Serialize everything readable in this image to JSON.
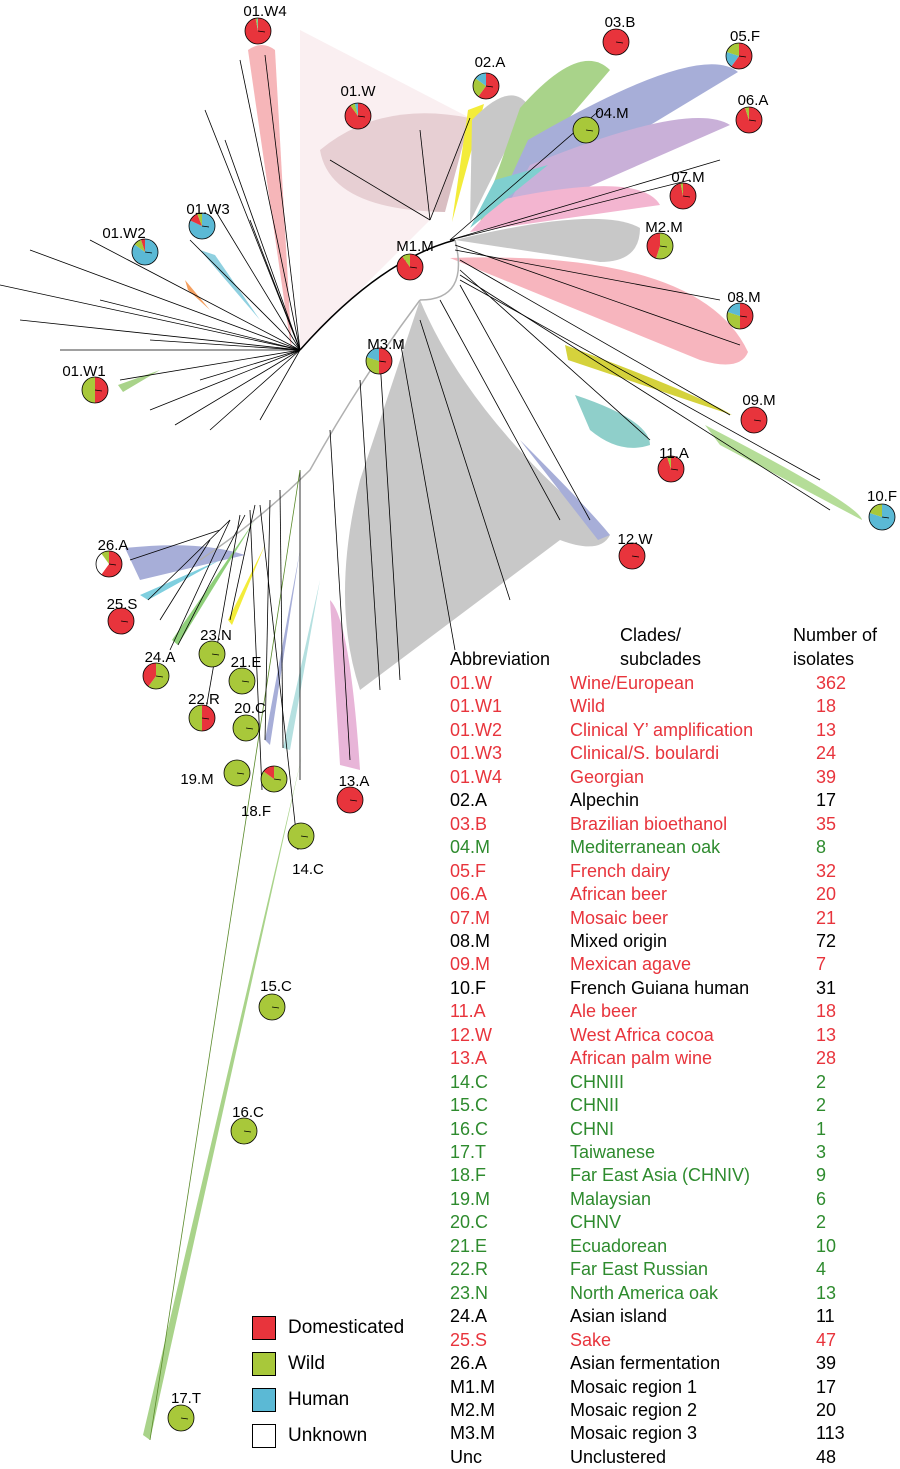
{
  "colors": {
    "domesticated": "#e8343c",
    "wild": "#a8c83a",
    "human": "#5bb9d5",
    "unknown": "#ffffff",
    "red_text": "#e8343c",
    "green_text": "#2e8b2e",
    "black_text": "#000000",
    "branch_gray": "#c8c8c8"
  },
  "clade_labels": [
    "01.W4",
    "01.W",
    "01.W2",
    "01.W3",
    "01.W1",
    "02.A",
    "03.B",
    "04.M",
    "05.F",
    "06.A",
    "07.M",
    "M2.M",
    "M1.M",
    "08.M",
    "M3.M",
    "09.M",
    "11.A",
    "10.F",
    "12.W",
    "26.A",
    "25.S",
    "24.A",
    "23.N",
    "21.E",
    "22.R",
    "20.C",
    "19.M",
    "18.F",
    "13.A",
    "14.C",
    "15.C",
    "16.C",
    "17.T"
  ],
  "table": {
    "headers": {
      "abbreviation": "Abbreviation",
      "clades_line1": "Clades/",
      "clades_line2": "subclades",
      "number_line1": "Number of",
      "number_line2": "isolates"
    },
    "rows": [
      {
        "abbr": "01.W",
        "name": "Wine/European",
        "n": "362",
        "group": "domesticated"
      },
      {
        "abbr": "01.W1",
        "name": "Wild",
        "n": "18",
        "group": "domesticated"
      },
      {
        "abbr": "01.W2",
        "name": "Clinical Y’ amplification",
        "n": "13",
        "group": "domesticated"
      },
      {
        "abbr": "01.W3",
        "name": "Clinical/S. boulardi",
        "n": "24",
        "group": "domesticated"
      },
      {
        "abbr": "01.W4",
        "name": "Georgian",
        "n": "39",
        "group": "domesticated"
      },
      {
        "abbr": "02.A",
        "name": "Alpechin",
        "n": "17",
        "group": "other"
      },
      {
        "abbr": "03.B",
        "name": "Brazilian bioethanol",
        "n": "35",
        "group": "domesticated"
      },
      {
        "abbr": "04.M",
        "name": "Mediterranean oak",
        "n": "8",
        "group": "wild"
      },
      {
        "abbr": "05.F",
        "name": "French dairy",
        "n": "32",
        "group": "domesticated"
      },
      {
        "abbr": "06.A",
        "name": "African beer",
        "n": "20",
        "group": "domesticated"
      },
      {
        "abbr": "07.M",
        "name": "Mosaic beer",
        "n": "21",
        "group": "domesticated"
      },
      {
        "abbr": "08.M",
        "name": "Mixed origin",
        "n": "72",
        "group": "other"
      },
      {
        "abbr": "09.M",
        "name": "Mexican agave",
        "n": "7",
        "group": "domesticated"
      },
      {
        "abbr": "10.F",
        "name": "French Guiana human",
        "n": "31",
        "group": "other"
      },
      {
        "abbr": "11.A",
        "name": "Ale beer",
        "n": "18",
        "group": "domesticated"
      },
      {
        "abbr": "12.W",
        "name": "West Africa cocoa",
        "n": "13",
        "group": "domesticated"
      },
      {
        "abbr": "13.A",
        "name": "African palm wine",
        "n": "28",
        "group": "domesticated"
      },
      {
        "abbr": "14.C",
        "name": "CHNIII",
        "n": "2",
        "group": "wild"
      },
      {
        "abbr": "15.C",
        "name": "CHNII",
        "n": "2",
        "group": "wild"
      },
      {
        "abbr": "16.C",
        "name": "CHNI",
        "n": "1",
        "group": "wild"
      },
      {
        "abbr": "17.T",
        "name": "Taiwanese",
        "n": "3",
        "group": "wild"
      },
      {
        "abbr": "18.F",
        "name": "Far East Asia (CHNIV)",
        "n": "9",
        "group": "wild"
      },
      {
        "abbr": "19.M",
        "name": "Malaysian",
        "n": "6",
        "group": "wild"
      },
      {
        "abbr": "20.C",
        "name": "CHNV",
        "n": "2",
        "group": "wild"
      },
      {
        "abbr": "21.E",
        "name": "Ecuadorean",
        "n": "10",
        "group": "wild"
      },
      {
        "abbr": "22.R",
        "name": "Far East Russian",
        "n": "4",
        "group": "wild"
      },
      {
        "abbr": "23.N",
        "name": "North America oak",
        "n": "13",
        "group": "wild"
      },
      {
        "abbr": "24.A",
        "name": "Asian island",
        "n": "11",
        "group": "other"
      },
      {
        "abbr": "25.S",
        "name": "Sake",
        "n": "47",
        "group": "domesticated"
      },
      {
        "abbr": "26.A",
        "name": "Asian fermentation",
        "n": "39",
        "group": "other"
      },
      {
        "abbr": "M1.M",
        "name": "Mosaic region 1",
        "n": "17",
        "group": "other"
      },
      {
        "abbr": "M2.M",
        "name": "Mosaic region 2",
        "n": "20",
        "group": "other"
      },
      {
        "abbr": "M3.M",
        "name": "Mosaic region 3",
        "n": "113",
        "group": "other"
      },
      {
        "abbr": "Unc",
        "name": "Unclustered",
        "n": "48",
        "group": "other"
      }
    ]
  },
  "legend": [
    {
      "label": "Domesticated",
      "key": "domesticated"
    },
    {
      "label": "Wild",
      "key": "wild"
    },
    {
      "label": "Human",
      "key": "human"
    },
    {
      "label": "Unknown",
      "key": "unknown"
    }
  ]
}
